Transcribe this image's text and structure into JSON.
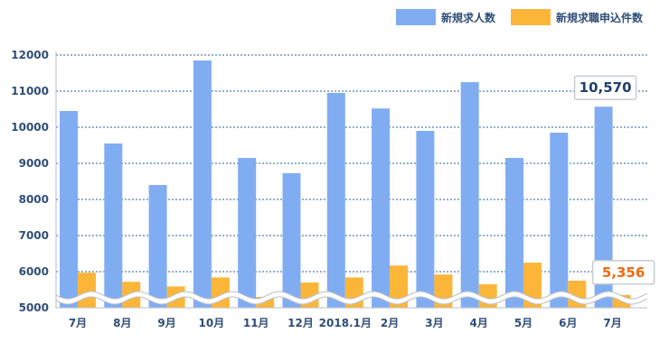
{
  "chart_data": {
    "type": "bar",
    "categories": [
      "7月",
      "8月",
      "9月",
      "10月",
      "11月",
      "12月",
      "2018.1月",
      "2月",
      "3月",
      "4月",
      "5月",
      "6月",
      "7月"
    ],
    "series": [
      {
        "name": "新規求人数",
        "color": "#80adf2",
        "values": [
          10450,
          9550,
          8400,
          11850,
          9150,
          8730,
          10950,
          10520,
          9900,
          11250,
          9150,
          9850,
          10570
        ]
      },
      {
        "name": "新規求職申込件数",
        "color": "#fbb63a",
        "values": [
          5970,
          5720,
          5590,
          5840,
          5300,
          5700,
          5840,
          6170,
          5920,
          5650,
          6250,
          5750,
          5356
        ]
      }
    ],
    "y_ticks": [
      "12000",
      "11000",
      "10000",
      "9000",
      "8000",
      "7000",
      "6000",
      "5000"
    ],
    "ylim": [
      5000,
      12000
    ],
    "axis_break": true,
    "grid": true,
    "legend_position": "top-right",
    "callouts": [
      {
        "series": 0,
        "index": 12,
        "text": "10,570",
        "color": "#1f3f6e"
      },
      {
        "series": 1,
        "index": 12,
        "text": "5,356",
        "color": "#f06a10"
      }
    ],
    "colors": {
      "grid": "#2a5f98",
      "tick_text": "#2f4d78",
      "axis": "#b8bec8"
    }
  }
}
